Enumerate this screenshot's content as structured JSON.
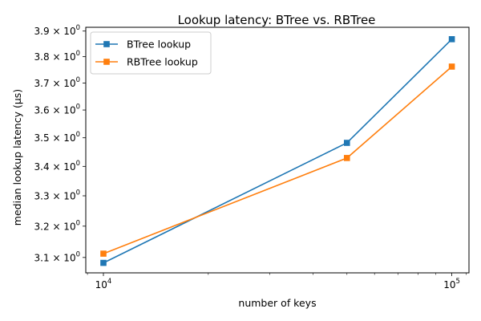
{
  "chart_data": {
    "type": "line",
    "title": "Lookup latency: BTree vs. RBTree",
    "xlabel": "number of keys",
    "ylabel": "median lookup latency (µs)",
    "xscale": "log",
    "yscale": "log",
    "x": [
      10000,
      50000,
      100000
    ],
    "xlim": [
      8900,
      112000
    ],
    "ylim": [
      3.052,
      3.915
    ],
    "xtick_labels": [
      {
        "base": "10",
        "exp": "4"
      },
      {
        "base": "10",
        "exp": "5"
      }
    ],
    "ytick_labels": [
      {
        "mant": "3.1",
        "exp": "0"
      },
      {
        "mant": "3.2",
        "exp": "0"
      },
      {
        "mant": "3.3",
        "exp": "0"
      },
      {
        "mant": "3.4",
        "exp": "0"
      },
      {
        "mant": "3.5",
        "exp": "0"
      },
      {
        "mant": "3.6",
        "exp": "0"
      },
      {
        "mant": "3.7",
        "exp": "0"
      },
      {
        "mant": "3.8",
        "exp": "0"
      },
      {
        "mant": "3.9",
        "exp": "0"
      }
    ],
    "series": [
      {
        "name": "BTree lookup",
        "color": "#1f77b4",
        "marker": "square",
        "values": [
          3.083,
          3.482,
          3.868
        ]
      },
      {
        "name": "RBTree lookup",
        "color": "#ff7f0e",
        "marker": "square",
        "values": [
          3.112,
          3.429,
          3.762
        ]
      }
    ],
    "grid": false,
    "legend_position": "top-left"
  }
}
